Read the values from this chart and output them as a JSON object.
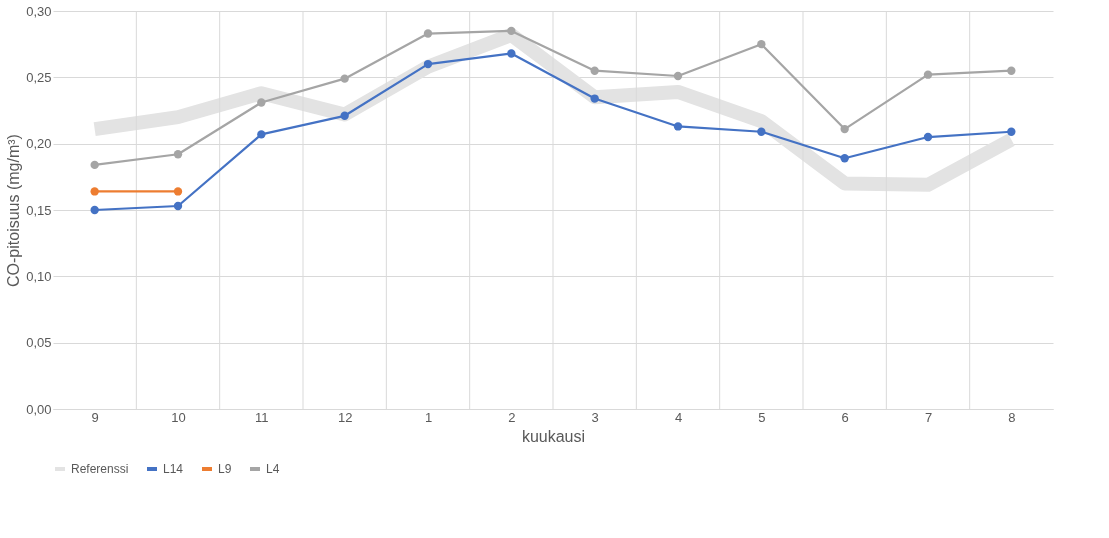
{
  "chart_data": {
    "type": "line",
    "xlabel": "kuukausi",
    "ylabel": "CO-pitoisuus (mg/m³)",
    "categories": [
      "9",
      "10",
      "11",
      "12",
      "1",
      "2",
      "3",
      "4",
      "5",
      "6",
      "7",
      "8"
    ],
    "series": [
      {
        "name": "Referenssi",
        "color": "#e3e3e3",
        "marker": "none",
        "values": [
          0.211,
          0.22,
          0.238,
          0.222,
          0.258,
          0.282,
          0.235,
          0.239,
          0.217,
          0.17,
          0.169,
          0.203
        ]
      },
      {
        "name": "L14",
        "color": "#4472c4",
        "marker": "circle",
        "values": [
          0.15,
          0.153,
          0.207,
          0.221,
          0.26,
          0.268,
          0.234,
          0.213,
          0.209,
          0.189,
          0.205,
          0.209
        ]
      },
      {
        "name": "L9",
        "color": "#ed7d31",
        "marker": "circle",
        "values": [
          0.164,
          0.164,
          null,
          null,
          null,
          null,
          null,
          null,
          null,
          null,
          null,
          null
        ]
      },
      {
        "name": "L4",
        "color": "#a5a5a5",
        "marker": "circle",
        "values": [
          0.184,
          0.192,
          0.231,
          0.249,
          0.283,
          0.285,
          0.255,
          0.251,
          0.275,
          0.211,
          0.252,
          0.255
        ]
      }
    ],
    "ylim": [
      0,
      0.3
    ],
    "yticks": [
      {
        "value": 0,
        "label": "0,00"
      },
      {
        "value": 0.05,
        "label": "0,05"
      },
      {
        "value": 0.1,
        "label": "0,10"
      },
      {
        "value": 0.15,
        "label": "0,15"
      },
      {
        "value": 0.2,
        "label": "0,20"
      },
      {
        "value": 0.25,
        "label": "0,25"
      },
      {
        "value": 0.3,
        "label": "0,30"
      }
    ],
    "grid": true,
    "legend": "bottom",
    "line_style": "solid"
  }
}
